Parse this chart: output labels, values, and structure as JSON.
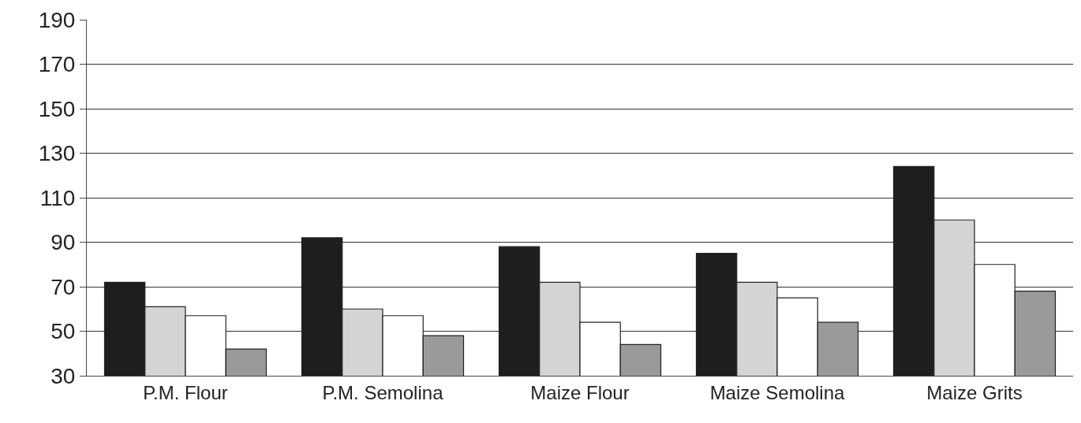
{
  "chart_data": {
    "type": "bar",
    "categories": [
      "P.M. Flour",
      "P.M. Semolina",
      "Maize Flour",
      "Maize Semolina",
      "Maize Grits"
    ],
    "series": [
      {
        "color": "#1e1e1e",
        "values": [
          72,
          92,
          88,
          85,
          124
        ]
      },
      {
        "color": "#d4d4d4",
        "values": [
          61,
          60,
          72,
          72,
          100
        ]
      },
      {
        "color": "#ffffff",
        "values": [
          57,
          57,
          54,
          65,
          80
        ]
      },
      {
        "color": "#9a9a9a",
        "values": [
          42,
          48,
          44,
          54,
          68
        ]
      }
    ],
    "ylim": [
      30,
      190
    ],
    "yticks": [
      30,
      50,
      70,
      90,
      110,
      130,
      150,
      170,
      190
    ],
    "grid": "y"
  }
}
